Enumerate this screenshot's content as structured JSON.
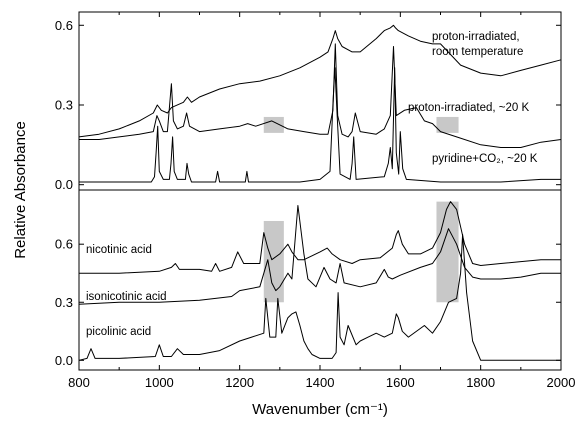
{
  "chart_data": [
    {
      "panel": "top",
      "type": "line",
      "xlim": [
        800,
        2000
      ],
      "ylim": [
        -0.02,
        0.65
      ],
      "yticks": [
        0.0,
        0.3,
        0.6
      ],
      "ytick_labels": [
        "0.0",
        "0.3",
        "0.6"
      ],
      "grid": false,
      "highlight_bands": [
        {
          "x": [
            1260,
            1310
          ],
          "y": [
            0.195,
            0.255
          ]
        },
        {
          "x": [
            1690,
            1745
          ],
          "y": [
            0.195,
            0.255
          ]
        }
      ],
      "series": [
        {
          "name": "proton-irradiated, room temperature",
          "x": [
            800,
            850,
            900,
            950,
            985,
            995,
            1005,
            1020,
            1030,
            1060,
            1070,
            1080,
            1100,
            1150,
            1200,
            1250,
            1300,
            1350,
            1400,
            1420,
            1432,
            1438,
            1444,
            1455,
            1480,
            1500,
            1540,
            1560,
            1575,
            1583,
            1588,
            1595,
            1620,
            1650,
            1680,
            1700,
            1750,
            1800,
            1850,
            1900,
            1950,
            2000
          ],
          "y": [
            0.18,
            0.19,
            0.21,
            0.24,
            0.27,
            0.3,
            0.28,
            0.27,
            0.29,
            0.31,
            0.33,
            0.31,
            0.33,
            0.36,
            0.38,
            0.39,
            0.41,
            0.44,
            0.48,
            0.5,
            0.55,
            0.58,
            0.55,
            0.52,
            0.5,
            0.5,
            0.55,
            0.58,
            0.59,
            0.6,
            0.59,
            0.58,
            0.56,
            0.54,
            0.53,
            0.53,
            0.45,
            0.42,
            0.41,
            0.43,
            0.45,
            0.47
          ]
        },
        {
          "name": "proton-irradiated, ~20 K",
          "x": [
            800,
            850,
            900,
            950,
            985,
            994,
            1000,
            1010,
            1020,
            1030,
            1035,
            1045,
            1060,
            1068,
            1075,
            1100,
            1150,
            1200,
            1220,
            1240,
            1280,
            1320,
            1360,
            1400,
            1420,
            1432,
            1438,
            1444,
            1455,
            1470,
            1480,
            1488,
            1500,
            1540,
            1560,
            1575,
            1583,
            1590,
            1610,
            1640,
            1660,
            1680,
            1700,
            1740,
            1800,
            1850,
            1900,
            1950,
            2000
          ],
          "y": [
            0.17,
            0.17,
            0.18,
            0.19,
            0.2,
            0.26,
            0.24,
            0.2,
            0.2,
            0.38,
            0.24,
            0.21,
            0.22,
            0.27,
            0.22,
            0.2,
            0.21,
            0.22,
            0.23,
            0.22,
            0.24,
            0.21,
            0.2,
            0.19,
            0.19,
            0.28,
            0.53,
            0.26,
            0.19,
            0.18,
            0.2,
            0.27,
            0.2,
            0.19,
            0.21,
            0.26,
            0.52,
            0.26,
            0.28,
            0.29,
            0.24,
            0.23,
            0.2,
            0.18,
            0.15,
            0.14,
            0.14,
            0.16,
            0.17
          ]
        },
        {
          "name": "pyridine+CO2, ~20 K",
          "x": [
            800,
            900,
            980,
            988,
            992,
            996,
            1000,
            1010,
            1025,
            1029,
            1033,
            1037,
            1045,
            1065,
            1069,
            1073,
            1080,
            1140,
            1145,
            1150,
            1160,
            1214,
            1218,
            1222,
            1235,
            1350,
            1400,
            1425,
            1432,
            1437,
            1442,
            1450,
            1475,
            1480,
            1484,
            1490,
            1560,
            1570,
            1575,
            1580,
            1586,
            1590,
            1596,
            1600,
            1606,
            1615,
            1700,
            1850,
            1950,
            2000
          ],
          "y": [
            0.01,
            0.01,
            0.01,
            0.03,
            0.12,
            0.22,
            0.05,
            0.02,
            0.02,
            0.08,
            0.18,
            0.05,
            0.02,
            0.02,
            0.08,
            0.04,
            0.01,
            0.01,
            0.05,
            0.01,
            0.01,
            0.01,
            0.05,
            0.01,
            0.01,
            0.01,
            0.02,
            0.05,
            0.3,
            0.44,
            0.28,
            0.04,
            0.02,
            0.08,
            0.18,
            0.02,
            0.03,
            0.08,
            0.14,
            0.06,
            0.44,
            0.12,
            0.04,
            0.2,
            0.06,
            0.02,
            0.01,
            0.01,
            0.02,
            0.02
          ]
        }
      ]
    },
    {
      "panel": "bottom",
      "type": "line",
      "xlim": [
        800,
        2000
      ],
      "ylim": [
        -0.05,
        0.88
      ],
      "xticks": [
        800,
        1000,
        1200,
        1400,
        1600,
        1800,
        2000
      ],
      "xtick_labels": [
        "800",
        "1000",
        "1200",
        "1400",
        "1600",
        "1800",
        "2000"
      ],
      "yticks": [
        0.0,
        0.3,
        0.6
      ],
      "ytick_labels": [
        "0.0",
        "0.3",
        "0.6"
      ],
      "grid": false,
      "highlight_bands": [
        {
          "x": [
            1260,
            1310
          ],
          "y": [
            0.3,
            0.72
          ]
        },
        {
          "x": [
            1690,
            1745
          ],
          "y": [
            0.3,
            0.82
          ]
        }
      ],
      "series": [
        {
          "name": "nicotinic acid",
          "x": [
            800,
            900,
            1000,
            1030,
            1040,
            1050,
            1100,
            1130,
            1140,
            1150,
            1180,
            1195,
            1210,
            1250,
            1260,
            1270,
            1280,
            1300,
            1320,
            1330,
            1345,
            1360,
            1380,
            1400,
            1418,
            1430,
            1450,
            1480,
            1500,
            1550,
            1580,
            1590,
            1595,
            1605,
            1620,
            1650,
            1680,
            1700,
            1715,
            1725,
            1740,
            1760,
            1780,
            1800,
            1850,
            1900,
            1950,
            2000
          ],
          "y": [
            0.45,
            0.45,
            0.46,
            0.48,
            0.5,
            0.47,
            0.47,
            0.46,
            0.5,
            0.46,
            0.48,
            0.56,
            0.5,
            0.5,
            0.66,
            0.58,
            0.52,
            0.55,
            0.6,
            0.56,
            0.52,
            0.52,
            0.54,
            0.56,
            0.58,
            0.55,
            0.52,
            0.5,
            0.52,
            0.53,
            0.58,
            0.65,
            0.67,
            0.6,
            0.55,
            0.55,
            0.58,
            0.66,
            0.78,
            0.82,
            0.78,
            0.6,
            0.5,
            0.49,
            0.5,
            0.51,
            0.52,
            0.52
          ]
        },
        {
          "name": "isonicotinic acid",
          "x": [
            800,
            900,
            1000,
            1100,
            1180,
            1200,
            1250,
            1270,
            1280,
            1290,
            1300,
            1320,
            1330,
            1345,
            1360,
            1370,
            1390,
            1410,
            1425,
            1440,
            1450,
            1460,
            1500,
            1540,
            1560,
            1570,
            1580,
            1600,
            1650,
            1680,
            1700,
            1720,
            1740,
            1760,
            1780,
            1800,
            1850,
            1900,
            1950,
            2000
          ],
          "y": [
            0.29,
            0.3,
            0.3,
            0.31,
            0.33,
            0.36,
            0.38,
            0.52,
            0.4,
            0.36,
            0.38,
            0.45,
            0.42,
            0.8,
            0.55,
            0.42,
            0.38,
            0.48,
            0.42,
            0.4,
            0.5,
            0.4,
            0.38,
            0.4,
            0.47,
            0.43,
            0.42,
            0.44,
            0.48,
            0.5,
            0.56,
            0.68,
            0.6,
            0.48,
            0.43,
            0.42,
            0.42,
            0.43,
            0.45,
            0.45
          ]
        },
        {
          "name": "picolinic acid",
          "x": [
            800,
            820,
            830,
            840,
            900,
            990,
            1000,
            1010,
            1030,
            1045,
            1060,
            1100,
            1150,
            1200,
            1230,
            1260,
            1265,
            1275,
            1290,
            1295,
            1305,
            1320,
            1330,
            1340,
            1350,
            1360,
            1370,
            1380,
            1400,
            1430,
            1440,
            1445,
            1450,
            1460,
            1470,
            1490,
            1500,
            1520,
            1540,
            1560,
            1580,
            1590,
            1595,
            1605,
            1620,
            1660,
            1680,
            1700,
            1720,
            1740,
            1750,
            1755,
            1765,
            1780,
            1800,
            1900,
            2000
          ],
          "y": [
            0.0,
            0.01,
            0.06,
            0.01,
            0.01,
            0.02,
            0.08,
            0.02,
            0.02,
            0.06,
            0.03,
            0.03,
            0.05,
            0.1,
            0.12,
            0.14,
            0.32,
            0.12,
            0.12,
            0.32,
            0.14,
            0.22,
            0.24,
            0.25,
            0.18,
            0.1,
            0.06,
            0.03,
            0.01,
            0.01,
            0.04,
            0.35,
            0.12,
            0.08,
            0.18,
            0.08,
            0.1,
            0.12,
            0.14,
            0.12,
            0.14,
            0.24,
            0.22,
            0.15,
            0.12,
            0.18,
            0.14,
            0.2,
            0.3,
            0.32,
            0.45,
            0.65,
            0.35,
            0.1,
            0.0,
            0.0,
            0.0
          ]
        }
      ]
    }
  ],
  "figure": {
    "xlabel": "Wavenumber (cm⁻¹)",
    "ylabel": "Relative Absorbance",
    "annotations": {
      "rt_line1": "proton-irradiated,",
      "rt_line2": "room temperature",
      "k20": "proton-irradiated, ~20 K",
      "pyridine": "pyridine+CO₂, ~20 K",
      "nicotinic": "nicotinic acid",
      "isonicotinic": "isonicotinic acid",
      "picolinic": "picolinic acid"
    }
  },
  "colors": {
    "line": "#000000",
    "band": "#c8c8c8",
    "axis": "#000000"
  }
}
